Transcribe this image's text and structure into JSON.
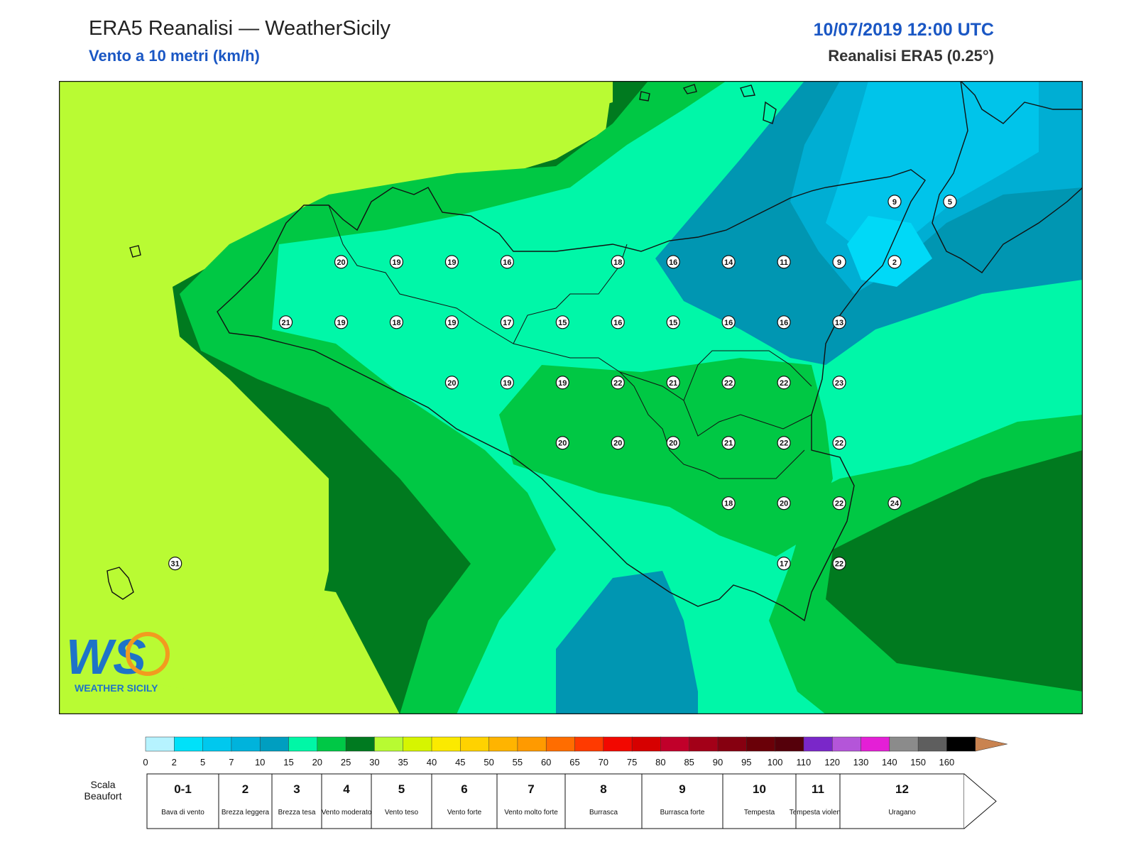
{
  "header": {
    "title": "ERA5 Reanalisi — WeatherSicily",
    "subtitle": "Vento a 10 metri (km/h)",
    "datetime": "10/07/2019 12:00 UTC",
    "source": "Reanalisi ERA5 (0.25°)"
  },
  "logo": {
    "text": "WS",
    "caption": "WEATHER SICILY"
  },
  "colors": {
    "c0_2": "#b0f2ff",
    "c2_5": "#00d9f7",
    "c5_7": "#00c4ea",
    "c7_10": "#00aed3",
    "c10_15": "#0096b2",
    "c15_20": "#00f7a8",
    "c20_25": "#00c844",
    "c25_30": "#007a1f",
    "c30_35": "#b9fb33",
    "c35_40": "#d7f500"
  },
  "stations": [
    {
      "v": "20",
      "lon": 12.75,
      "lat": 38.05
    },
    {
      "v": "19",
      "lon": 13.25,
      "lat": 38.05
    },
    {
      "v": "19",
      "lon": 13.75,
      "lat": 38.05
    },
    {
      "v": "16",
      "lon": 14.25,
      "lat": 38.05
    },
    {
      "v": "18",
      "lon": 15.25,
      "lat": 38.05
    },
    {
      "v": "16",
      "lon": 15.75,
      "lat": 38.05
    },
    {
      "v": "14",
      "lon": 16.25,
      "lat": 38.05
    },
    {
      "v": "11",
      "lon": 16.75,
      "lat": 38.05
    },
    {
      "v": "9",
      "lon": 17.25,
      "lat": 38.05
    },
    {
      "v": "2",
      "lon": 17.75,
      "lat": 38.05
    },
    {
      "v": "9",
      "lon": 17.75,
      "lat": 38.55
    },
    {
      "v": "5",
      "lon": 18.25,
      "lat": 38.55
    },
    {
      "v": "21",
      "lon": 12.25,
      "lat": 37.55
    },
    {
      "v": "19",
      "lon": 12.75,
      "lat": 37.55
    },
    {
      "v": "18",
      "lon": 13.25,
      "lat": 37.55
    },
    {
      "v": "19",
      "lon": 13.75,
      "lat": 37.55
    },
    {
      "v": "17",
      "lon": 14.25,
      "lat": 37.55
    },
    {
      "v": "15",
      "lon": 14.75,
      "lat": 37.55
    },
    {
      "v": "16",
      "lon": 15.25,
      "lat": 37.55
    },
    {
      "v": "15",
      "lon": 15.75,
      "lat": 37.55
    },
    {
      "v": "16",
      "lon": 16.25,
      "lat": 37.55
    },
    {
      "v": "16",
      "lon": 16.75,
      "lat": 37.55
    },
    {
      "v": "13",
      "lon": 17.25,
      "lat": 37.55
    },
    {
      "v": "20",
      "lon": 13.75,
      "lat": 37.05
    },
    {
      "v": "19",
      "lon": 14.25,
      "lat": 37.05
    },
    {
      "v": "19",
      "lon": 14.75,
      "lat": 37.05
    },
    {
      "v": "22",
      "lon": 15.25,
      "lat": 37.05
    },
    {
      "v": "21",
      "lon": 15.75,
      "lat": 37.05
    },
    {
      "v": "22",
      "lon": 16.25,
      "lat": 37.05
    },
    {
      "v": "22",
      "lon": 16.75,
      "lat": 37.05
    },
    {
      "v": "23",
      "lon": 17.25,
      "lat": 37.05
    },
    {
      "v": "20",
      "lon": 14.75,
      "lat": 36.55
    },
    {
      "v": "20",
      "lon": 15.25,
      "lat": 36.55
    },
    {
      "v": "20",
      "lon": 15.75,
      "lat": 36.55
    },
    {
      "v": "21",
      "lon": 16.25,
      "lat": 36.55
    },
    {
      "v": "22",
      "lon": 16.75,
      "lat": 36.55
    },
    {
      "v": "22",
      "lon": 17.25,
      "lat": 36.55
    },
    {
      "v": "18",
      "lon": 16.25,
      "lat": 36.05
    },
    {
      "v": "20",
      "lon": 16.75,
      "lat": 36.05
    },
    {
      "v": "22",
      "lon": 17.25,
      "lat": 36.05
    },
    {
      "v": "24",
      "lon": 17.75,
      "lat": 36.05
    },
    {
      "v": "17",
      "lon": 16.75,
      "lat": 35.55
    },
    {
      "v": "22",
      "lon": 17.25,
      "lat": 35.55
    },
    {
      "v": "31",
      "lon": 11.25,
      "lat": 35.55
    }
  ],
  "colorbar": {
    "ticks": [
      "0",
      "2",
      "5",
      "7",
      "10",
      "15",
      "20",
      "25",
      "30",
      "35",
      "40",
      "45",
      "50",
      "55",
      "60",
      "65",
      "70",
      "75",
      "80",
      "85",
      "90",
      "95",
      "100",
      "110",
      "120",
      "130",
      "140",
      "150",
      "160"
    ],
    "colors": [
      "#b6f3ff",
      "#00e1f9",
      "#00c8ee",
      "#00b3dc",
      "#009ec0",
      "#00f7a6",
      "#00c846",
      "#007a20",
      "#b8fb32",
      "#d6f500",
      "#fbea00",
      "#ffd200",
      "#ffb400",
      "#ff9a00",
      "#ff6d00",
      "#ff3a00",
      "#f20800",
      "#d60000",
      "#c1002a",
      "#a30018",
      "#860010",
      "#6a0008",
      "#55000a",
      "#7a27c9",
      "#b455d9",
      "#e41fd6",
      "#8b8b8b",
      "#5e5e5e",
      "#000000",
      "#7f4a2a",
      "#c98350"
    ]
  },
  "beaufort": {
    "label": "Scala Beaufort",
    "cells": [
      {
        "num": "0-1",
        "desc": "Bava di vento"
      },
      {
        "num": "2",
        "desc": "Brezza leggera"
      },
      {
        "num": "3",
        "desc": "Brezza tesa"
      },
      {
        "num": "4",
        "desc": "Vento moderato"
      },
      {
        "num": "5",
        "desc": "Vento teso"
      },
      {
        "num": "6",
        "desc": "Vento forte"
      },
      {
        "num": "7",
        "desc": "Vento molto forte"
      },
      {
        "num": "8",
        "desc": "Burrasca"
      },
      {
        "num": "9",
        "desc": "Burrasca forte"
      },
      {
        "num": "10",
        "desc": "Tempesta"
      },
      {
        "num": "11",
        "desc": "Tempesta violenta"
      },
      {
        "num": "12",
        "desc": "Uragano"
      }
    ]
  }
}
